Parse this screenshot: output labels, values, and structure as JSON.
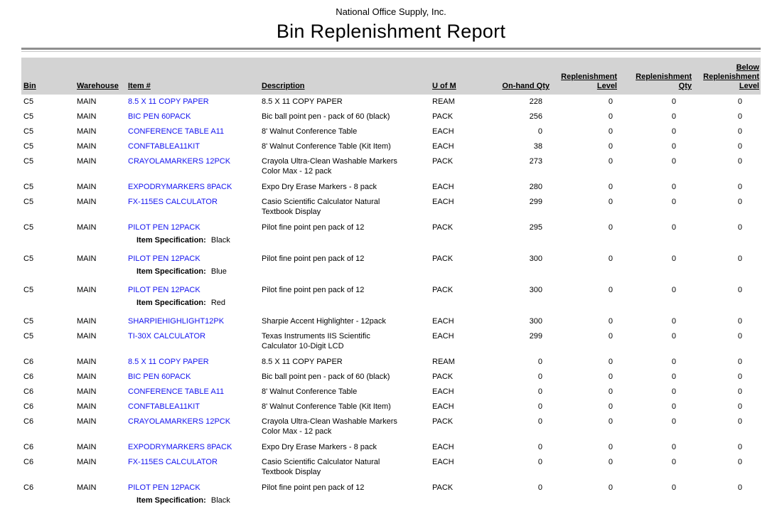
{
  "report": {
    "company": "National Office Supply, Inc.",
    "title": "Bin Replenishment Report"
  },
  "colors": {
    "header_band": "#d3d3d3",
    "rule_dark": "#8f8f8f",
    "rule_light": "#c6c6c6",
    "item_link_blue": "#1414f0"
  },
  "spec_label": "Item Specification:",
  "columns": [
    {
      "key": "bin",
      "label": "Bin"
    },
    {
      "key": "warehouse",
      "label": "Warehouse"
    },
    {
      "key": "item",
      "label": "Item #"
    },
    {
      "key": "description",
      "label": "Description"
    },
    {
      "key": "uom",
      "label": "U of M"
    },
    {
      "key": "onhand",
      "label": "On-hand Qty"
    },
    {
      "key": "repl_level",
      "label": "Replenishment\nLevel"
    },
    {
      "key": "repl_qty",
      "label": "Replenishment\nQty"
    },
    {
      "key": "below_repl",
      "label": "Below\nReplenishment\nLevel"
    }
  ],
  "rows": [
    {
      "bin": "C5",
      "warehouse": "MAIN",
      "item": "8.5 X 11 COPY PAPER",
      "description": "8.5 X 11 COPY PAPER",
      "uom": "REAM",
      "onhand": 228,
      "repl_level": 0,
      "repl_qty": 0,
      "below_repl": 0
    },
    {
      "bin": "C5",
      "warehouse": "MAIN",
      "item": "BIC PEN 60PACK",
      "description": "Bic ball point pen - pack of 60 (black)",
      "uom": "PACK",
      "onhand": 256,
      "repl_level": 0,
      "repl_qty": 0,
      "below_repl": 0
    },
    {
      "bin": "C5",
      "warehouse": "MAIN",
      "item": "CONFERENCE TABLE A11",
      "description": "8' Walnut Conference Table",
      "uom": "EACH",
      "onhand": 0,
      "repl_level": 0,
      "repl_qty": 0,
      "below_repl": 0
    },
    {
      "bin": "C5",
      "warehouse": "MAIN",
      "item": "CONFTABLEA11KIT",
      "description": "8' Walnut Conference Table (Kit Item)",
      "uom": "EACH",
      "onhand": 38,
      "repl_level": 0,
      "repl_qty": 0,
      "below_repl": 0
    },
    {
      "bin": "C5",
      "warehouse": "MAIN",
      "item": "CRAYOLAMARKERS 12PCK",
      "description": "Crayola Ultra-Clean Washable Markers\nColor Max - 12 pack",
      "uom": "PACK",
      "onhand": 273,
      "repl_level": 0,
      "repl_qty": 0,
      "below_repl": 0
    },
    {
      "bin": "C5",
      "warehouse": "MAIN",
      "item": "EXPODRYMARKERS 8PACK",
      "description": "Expo Dry Erase Markers - 8 pack",
      "uom": "EACH",
      "onhand": 280,
      "repl_level": 0,
      "repl_qty": 0,
      "below_repl": 0
    },
    {
      "bin": "C5",
      "warehouse": "MAIN",
      "item": "FX-115ES CALCULATOR",
      "description": "Casio Scientific Calculator Natural\nTextbook Display",
      "uom": "EACH",
      "onhand": 299,
      "repl_level": 0,
      "repl_qty": 0,
      "below_repl": 0
    },
    {
      "bin": "C5",
      "warehouse": "MAIN",
      "item": "PILOT PEN 12PACK",
      "description": "Pilot fine point pen pack of 12",
      "uom": "PACK",
      "onhand": 295,
      "repl_level": 0,
      "repl_qty": 0,
      "below_repl": 0,
      "spec": "Black"
    },
    {
      "bin": "C5",
      "warehouse": "MAIN",
      "item": "PILOT PEN 12PACK",
      "description": "Pilot fine point pen pack of 12",
      "uom": "PACK",
      "onhand": 300,
      "repl_level": 0,
      "repl_qty": 0,
      "below_repl": 0,
      "spec": "Blue"
    },
    {
      "bin": "C5",
      "warehouse": "MAIN",
      "item": "PILOT PEN 12PACK",
      "description": "Pilot fine point pen pack of 12",
      "uom": "PACK",
      "onhand": 300,
      "repl_level": 0,
      "repl_qty": 0,
      "below_repl": 0,
      "spec": "Red"
    },
    {
      "bin": "C5",
      "warehouse": "MAIN",
      "item": "SHARPIEHIGHLIGHT12PK",
      "description": "Sharpie Accent Highlighter - 12pack",
      "uom": "EACH",
      "onhand": 300,
      "repl_level": 0,
      "repl_qty": 0,
      "below_repl": 0
    },
    {
      "bin": "C5",
      "warehouse": "MAIN",
      "item": "TI-30X CALCULATOR",
      "description": "Texas Instruments IIS Scientific\nCalculator 10-Digit LCD",
      "uom": "EACH",
      "onhand": 299,
      "repl_level": 0,
      "repl_qty": 0,
      "below_repl": 0
    },
    {
      "bin": "C6",
      "warehouse": "MAIN",
      "item": "8.5 X 11 COPY PAPER",
      "description": "8.5 X 11 COPY PAPER",
      "uom": "REAM",
      "onhand": 0,
      "repl_level": 0,
      "repl_qty": 0,
      "below_repl": 0
    },
    {
      "bin": "C6",
      "warehouse": "MAIN",
      "item": "BIC PEN 60PACK",
      "description": "Bic ball point pen - pack of 60 (black)",
      "uom": "PACK",
      "onhand": 0,
      "repl_level": 0,
      "repl_qty": 0,
      "below_repl": 0
    },
    {
      "bin": "C6",
      "warehouse": "MAIN",
      "item": "CONFERENCE TABLE A11",
      "description": "8' Walnut Conference Table",
      "uom": "EACH",
      "onhand": 0,
      "repl_level": 0,
      "repl_qty": 0,
      "below_repl": 0
    },
    {
      "bin": "C6",
      "warehouse": "MAIN",
      "item": "CONFTABLEA11KIT",
      "description": "8' Walnut Conference Table (Kit Item)",
      "uom": "EACH",
      "onhand": 0,
      "repl_level": 0,
      "repl_qty": 0,
      "below_repl": 0
    },
    {
      "bin": "C6",
      "warehouse": "MAIN",
      "item": "CRAYOLAMARKERS 12PCK",
      "description": "Crayola Ultra-Clean Washable Markers\nColor Max - 12 pack",
      "uom": "PACK",
      "onhand": 0,
      "repl_level": 0,
      "repl_qty": 0,
      "below_repl": 0
    },
    {
      "bin": "C6",
      "warehouse": "MAIN",
      "item": "EXPODRYMARKERS 8PACK",
      "description": "Expo Dry Erase Markers - 8 pack",
      "uom": "EACH",
      "onhand": 0,
      "repl_level": 0,
      "repl_qty": 0,
      "below_repl": 0
    },
    {
      "bin": "C6",
      "warehouse": "MAIN",
      "item": "FX-115ES CALCULATOR",
      "description": "Casio Scientific Calculator Natural\nTextbook Display",
      "uom": "EACH",
      "onhand": 0,
      "repl_level": 0,
      "repl_qty": 0,
      "below_repl": 0
    },
    {
      "bin": "C6",
      "warehouse": "MAIN",
      "item": "PILOT PEN 12PACK",
      "description": "Pilot fine point pen pack of 12",
      "uom": "PACK",
      "onhand": 0,
      "repl_level": 0,
      "repl_qty": 0,
      "below_repl": 0,
      "spec": "Black"
    }
  ]
}
